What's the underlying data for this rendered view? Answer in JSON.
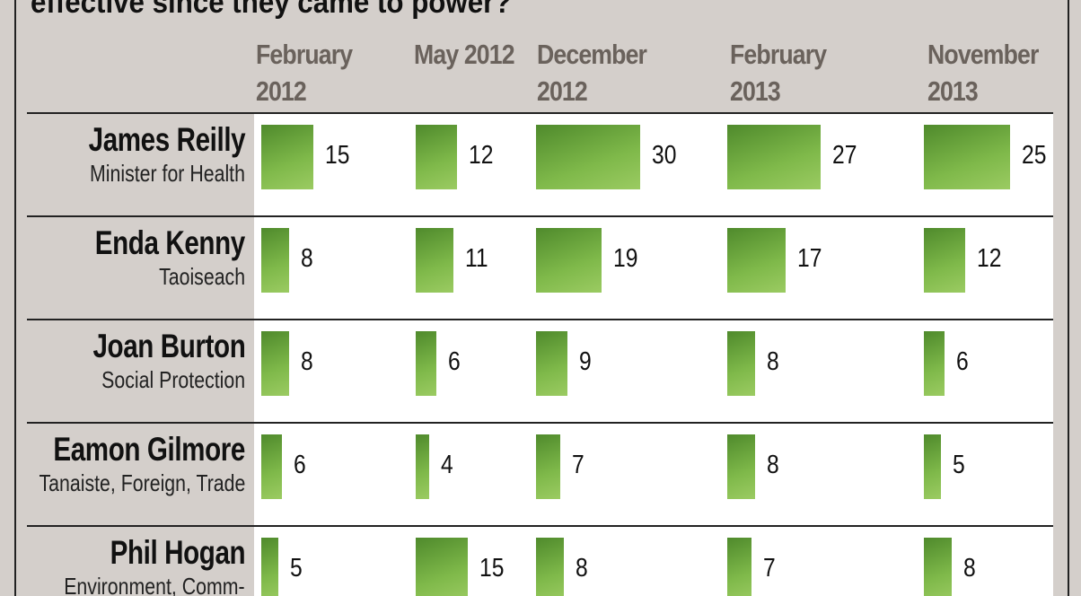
{
  "chart_data": {
    "type": "bar",
    "title": "effective since they came to power?",
    "categories": [
      "February 2012",
      "May 2012",
      "December 2012",
      "February 2013",
      "November 2013"
    ],
    "color": "#6aa33a",
    "series": [
      {
        "name": "James Reilly",
        "role": "Minister for Health",
        "values": [
          15,
          12,
          30,
          27,
          25
        ]
      },
      {
        "name": "Enda Kenny",
        "role": "Taoiseach",
        "values": [
          8,
          11,
          19,
          17,
          12
        ]
      },
      {
        "name": "Joan Burton",
        "role": "Social Protection",
        "values": [
          8,
          6,
          9,
          8,
          6
        ]
      },
      {
        "name": "Eamon Gilmore",
        "role": "Tanaiste, Foreign, Trade",
        "values": [
          6,
          4,
          7,
          8,
          5
        ]
      },
      {
        "name": "Phil Hogan",
        "role": "Environment, Comm-",
        "values": [
          5,
          15,
          8,
          7,
          8
        ]
      }
    ]
  }
}
